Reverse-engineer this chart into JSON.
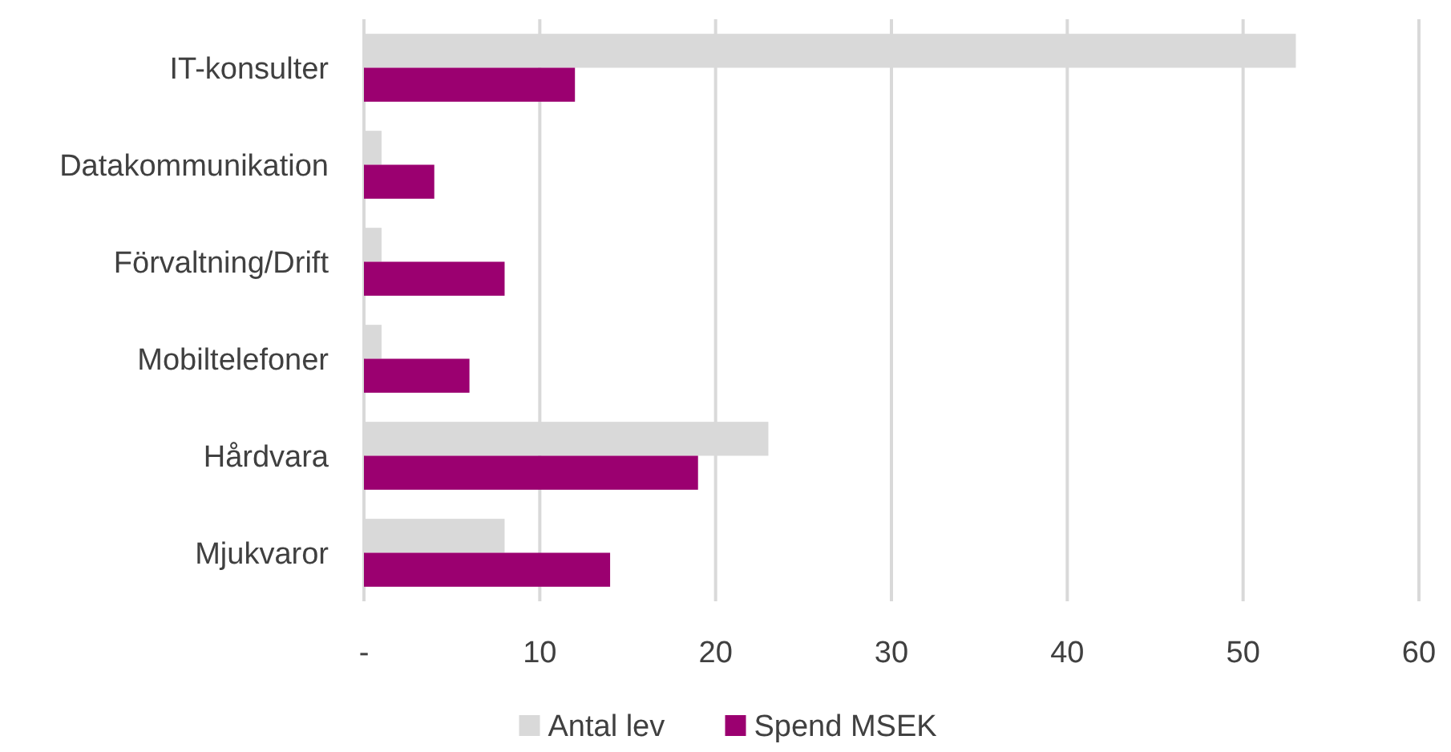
{
  "chart_data": {
    "type": "bar",
    "orientation": "horizontal",
    "categories": [
      "IT-konsulter",
      "Datakommunikation",
      "Förvaltning/Drift",
      "Mobiltelefoner",
      "Hårdvara",
      "Mjukvaror"
    ],
    "series": [
      {
        "name": "Antal lev",
        "color": "#d9d9d9",
        "values": [
          53,
          1,
          1,
          1,
          23,
          8
        ]
      },
      {
        "name": "Spend MSEK",
        "color": "#9b0070",
        "values": [
          12,
          4,
          8,
          6,
          19,
          14
        ]
      }
    ],
    "xlim": [
      0,
      60
    ],
    "xticks": [
      {
        "value": 0,
        "label": "-"
      },
      10,
      20,
      30,
      40,
      50,
      60
    ],
    "grid": "x",
    "legend": "bottom"
  }
}
